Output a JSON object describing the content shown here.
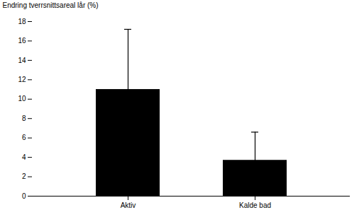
{
  "chart_data": {
    "type": "bar",
    "categories": [
      "Aktiv",
      "Kalde bad"
    ],
    "values": [
      11.0,
      3.7
    ],
    "errors": [
      6.2,
      2.9
    ],
    "ylabel": "Endring tverrsnittsareal lår (%)",
    "ylim": [
      0,
      18
    ],
    "yticks": [
      0,
      2,
      4,
      6,
      8,
      10,
      12,
      14,
      16,
      18
    ],
    "grid": false
  }
}
